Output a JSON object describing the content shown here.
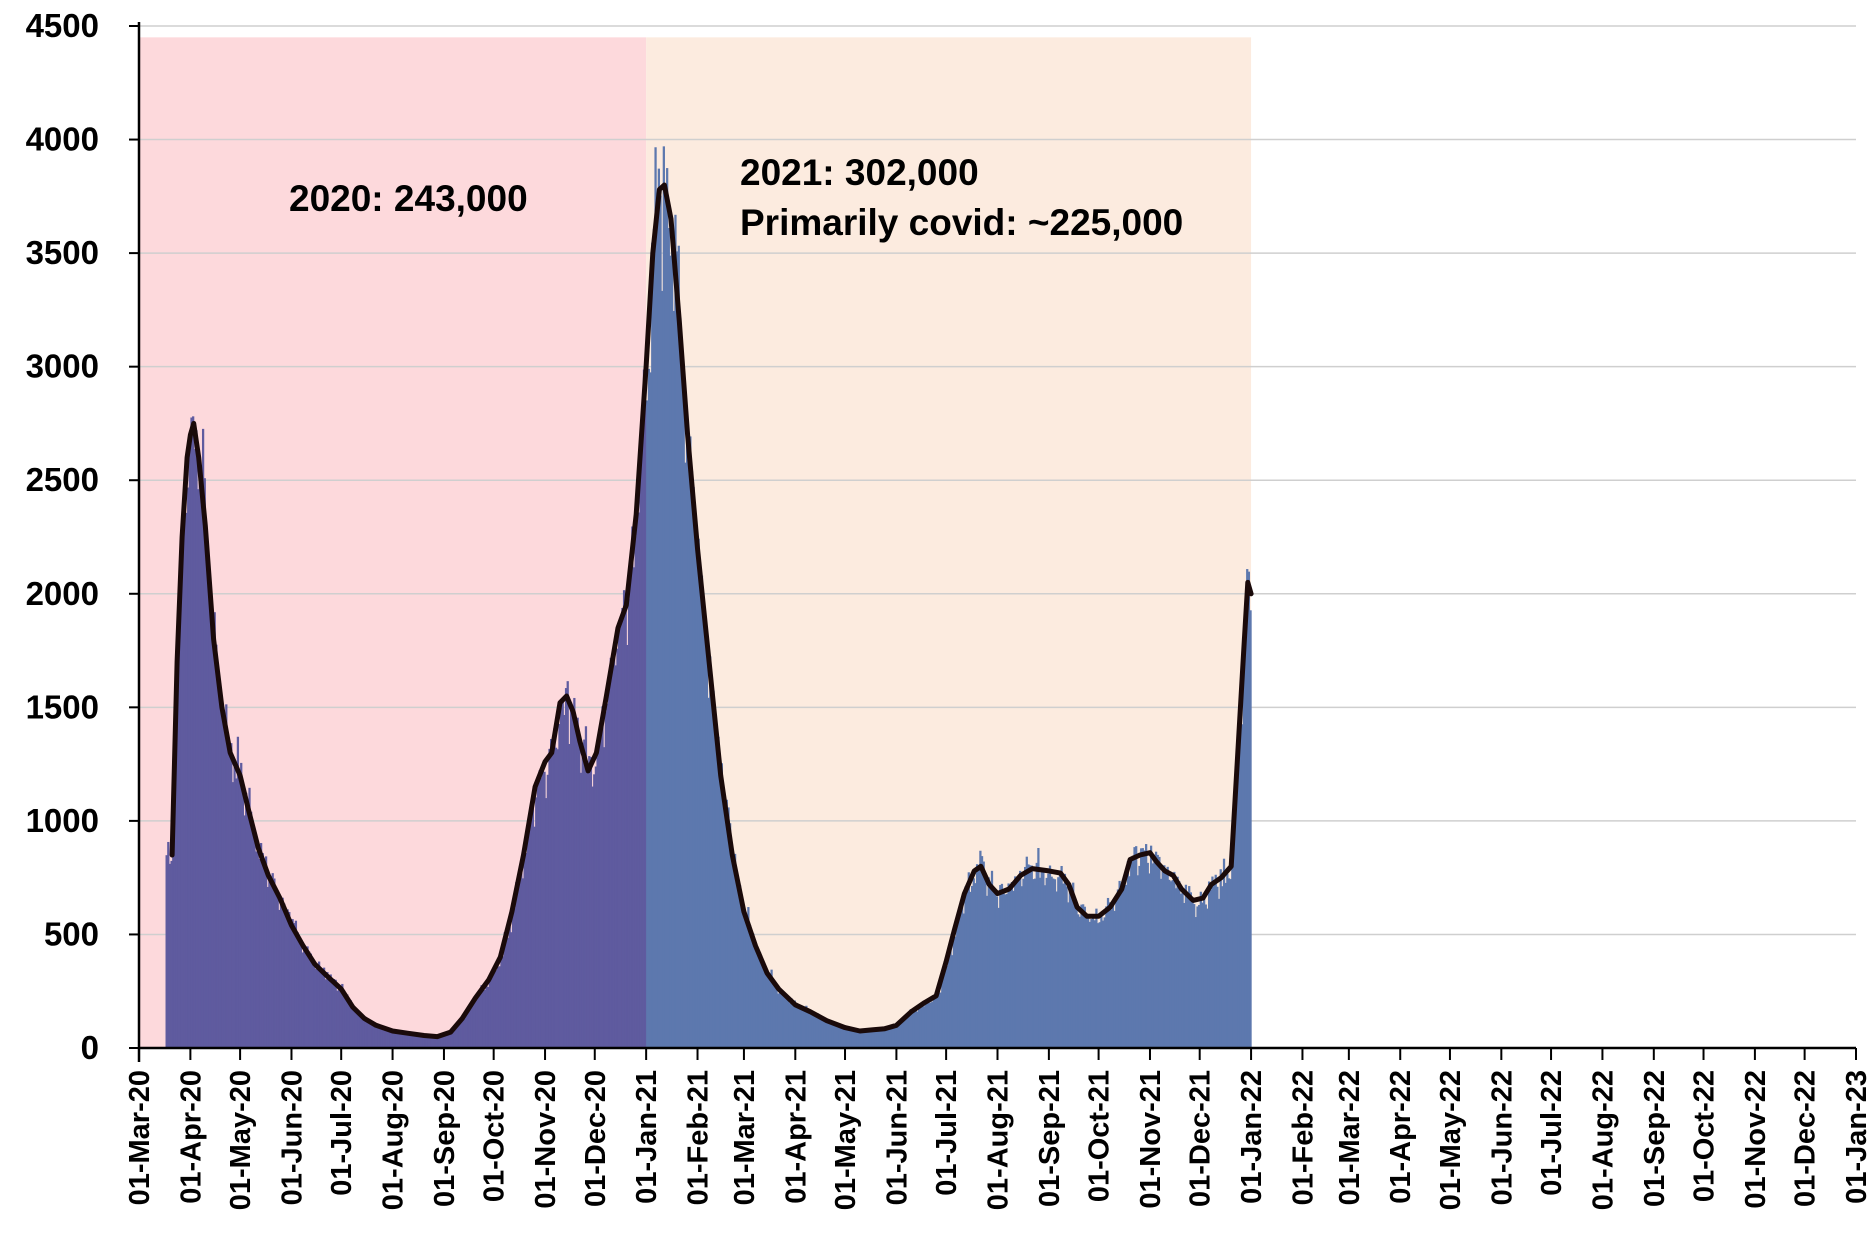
{
  "colors": {
    "region_2020": "#fdd9dc",
    "region_2021": "#fcebdf",
    "bars_2020": "#5f5b9f",
    "bars_2021": "#5d78ae",
    "average_line": "#1a0a0a",
    "grid": "#cfcfcf",
    "axis": "#000000"
  },
  "annotations": {
    "year_2020": "2020: 243,000",
    "year_2021": "2021: 302,000",
    "year_2021_covid": "Primarily covid: ~225,000"
  },
  "chart_data": {
    "type": "bar",
    "title": "",
    "xlabel": "",
    "ylabel": "",
    "ylim": [
      0,
      4500
    ],
    "grid": true,
    "y_ticks": [
      0,
      500,
      1000,
      1500,
      2000,
      2500,
      3000,
      3500,
      4000,
      4500
    ],
    "x_tick_labels": [
      "01-Mar-20",
      "01-Apr-20",
      "01-May-20",
      "01-Jun-20",
      "01-Jul-20",
      "01-Aug-20",
      "01-Sep-20",
      "01-Oct-20",
      "01-Nov-20",
      "01-Dec-20",
      "01-Jan-21",
      "01-Feb-21",
      "01-Mar-21",
      "01-Apr-21",
      "01-May-21",
      "01-Jun-21",
      "01-Jul-21",
      "01-Aug-21",
      "01-Sep-21",
      "01-Oct-21",
      "01-Nov-21",
      "01-Dec-21",
      "01-Jan-22",
      "01-Feb-22",
      "01-Mar-22",
      "01-Apr-22",
      "01-May-22",
      "01-Jun-22",
      "01-Jul-22",
      "01-Aug-22",
      "01-Sep-22",
      "01-Oct-22",
      "01-Nov-22",
      "01-Dec-22",
      "01-Jan-23"
    ],
    "x_range": [
      "2020-03-01",
      "2023-01-01"
    ],
    "shaded_regions": [
      {
        "start": "2020-03-01",
        "end": "2021-01-01",
        "top": 4450
      },
      {
        "start": "2021-01-01",
        "end": "2022-01-01",
        "top": 4450
      }
    ],
    "daily_bars_date_range": [
      "2020-03-17",
      "2022-01-01"
    ],
    "series": [
      {
        "type": "line",
        "points": [
          [
            "2020-03-21",
            850
          ],
          [
            "2020-03-24",
            1700
          ],
          [
            "2020-03-27",
            2250
          ],
          [
            "2020-03-30",
            2600
          ],
          [
            "2020-04-01",
            2700
          ],
          [
            "2020-04-03",
            2750
          ],
          [
            "2020-04-06",
            2600
          ],
          [
            "2020-04-10",
            2300
          ],
          [
            "2020-04-15",
            1800
          ],
          [
            "2020-04-20",
            1500
          ],
          [
            "2020-04-25",
            1300
          ],
          [
            "2020-05-01",
            1200
          ],
          [
            "2020-05-06",
            1050
          ],
          [
            "2020-05-12",
            880
          ],
          [
            "2020-05-18",
            760
          ],
          [
            "2020-05-25",
            660
          ],
          [
            "2020-06-01",
            540
          ],
          [
            "2020-06-08",
            450
          ],
          [
            "2020-06-15",
            370
          ],
          [
            "2020-06-22",
            320
          ],
          [
            "2020-07-01",
            260
          ],
          [
            "2020-07-08",
            180
          ],
          [
            "2020-07-15",
            130
          ],
          [
            "2020-07-22",
            100
          ],
          [
            "2020-08-01",
            75
          ],
          [
            "2020-08-10",
            65
          ],
          [
            "2020-08-20",
            55
          ],
          [
            "2020-08-28",
            50
          ],
          [
            "2020-09-05",
            70
          ],
          [
            "2020-09-12",
            130
          ],
          [
            "2020-09-20",
            220
          ],
          [
            "2020-09-28",
            300
          ],
          [
            "2020-10-05",
            400
          ],
          [
            "2020-10-12",
            600
          ],
          [
            "2020-10-19",
            850
          ],
          [
            "2020-10-26",
            1150
          ],
          [
            "2020-11-01",
            1260
          ],
          [
            "2020-11-05",
            1300
          ],
          [
            "2020-11-10",
            1520
          ],
          [
            "2020-11-14",
            1550
          ],
          [
            "2020-11-18",
            1480
          ],
          [
            "2020-11-22",
            1350
          ],
          [
            "2020-11-27",
            1220
          ],
          [
            "2020-12-02",
            1300
          ],
          [
            "2020-12-08",
            1550
          ],
          [
            "2020-12-15",
            1850
          ],
          [
            "2020-12-20",
            1950
          ],
          [
            "2020-12-26",
            2350
          ],
          [
            "2021-01-01",
            3000
          ],
          [
            "2021-01-05",
            3500
          ],
          [
            "2021-01-09",
            3780
          ],
          [
            "2021-01-12",
            3800
          ],
          [
            "2021-01-16",
            3650
          ],
          [
            "2021-01-21",
            3200
          ],
          [
            "2021-01-26",
            2700
          ],
          [
            "2021-02-01",
            2200
          ],
          [
            "2021-02-08",
            1700
          ],
          [
            "2021-02-15",
            1200
          ],
          [
            "2021-02-22",
            850
          ],
          [
            "2021-03-01",
            600
          ],
          [
            "2021-03-08",
            450
          ],
          [
            "2021-03-15",
            330
          ],
          [
            "2021-03-22",
            260
          ],
          [
            "2021-04-01",
            190
          ],
          [
            "2021-04-10",
            160
          ],
          [
            "2021-04-20",
            120
          ],
          [
            "2021-05-01",
            90
          ],
          [
            "2021-05-10",
            75
          ],
          [
            "2021-05-18",
            80
          ],
          [
            "2021-05-25",
            85
          ],
          [
            "2021-06-01",
            100
          ],
          [
            "2021-06-10",
            160
          ],
          [
            "2021-06-18",
            200
          ],
          [
            "2021-06-25",
            230
          ],
          [
            "2021-07-01",
            380
          ],
          [
            "2021-07-06",
            520
          ],
          [
            "2021-07-12",
            680
          ],
          [
            "2021-07-18",
            780
          ],
          [
            "2021-07-22",
            800
          ],
          [
            "2021-07-27",
            720
          ],
          [
            "2021-08-01",
            680
          ],
          [
            "2021-08-08",
            700
          ],
          [
            "2021-08-15",
            760
          ],
          [
            "2021-08-22",
            790
          ],
          [
            "2021-09-01",
            780
          ],
          [
            "2021-09-08",
            770
          ],
          [
            "2021-09-13",
            720
          ],
          [
            "2021-09-18",
            620
          ],
          [
            "2021-09-24",
            580
          ],
          [
            "2021-10-01",
            580
          ],
          [
            "2021-10-08",
            620
          ],
          [
            "2021-10-15",
            700
          ],
          [
            "2021-10-20",
            830
          ],
          [
            "2021-10-26",
            850
          ],
          [
            "2021-11-01",
            860
          ],
          [
            "2021-11-05",
            820
          ],
          [
            "2021-11-10",
            780
          ],
          [
            "2021-11-15",
            760
          ],
          [
            "2021-11-20",
            700
          ],
          [
            "2021-11-27",
            650
          ],
          [
            "2021-12-03",
            660
          ],
          [
            "2021-12-08",
            720
          ],
          [
            "2021-12-14",
            750
          ],
          [
            "2021-12-20",
            800
          ],
          [
            "2021-12-24",
            1300
          ],
          [
            "2021-12-28",
            1800
          ],
          [
            "2021-12-30",
            2050
          ],
          [
            "2022-01-01",
            2000
          ]
        ]
      }
    ]
  }
}
